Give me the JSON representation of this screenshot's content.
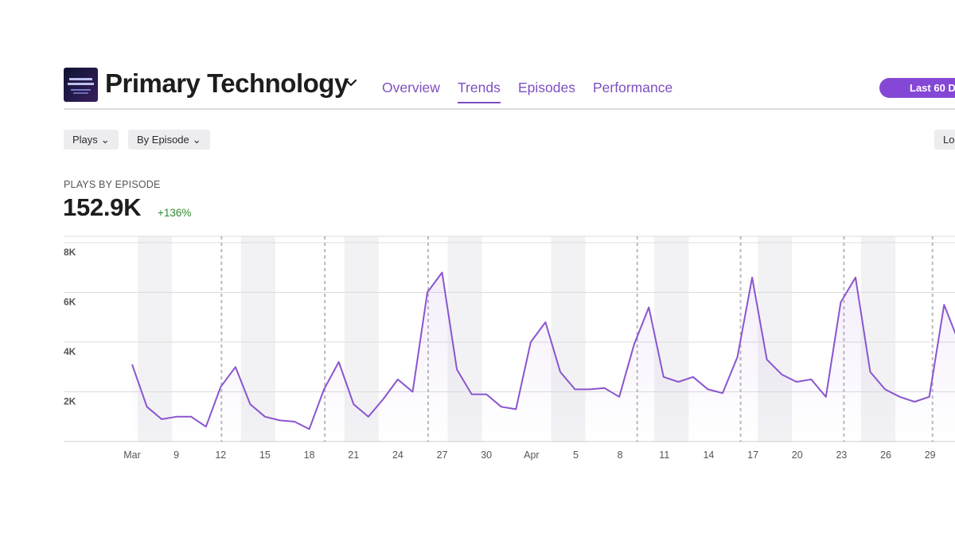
{
  "header": {
    "podcast_title": "Primary Technology",
    "tabs": [
      {
        "label": "Overview"
      },
      {
        "label": "Trends"
      },
      {
        "label": "Episodes"
      },
      {
        "label": "Performance"
      }
    ],
    "range_button": "Last 60 D"
  },
  "filters": {
    "metric": "Plays",
    "grouping": "By Episode",
    "right_button": "Lo"
  },
  "metric": {
    "label": "PLAYS BY EPISODE",
    "value": "152.9K",
    "change": "+136%"
  },
  "colors": {
    "accent": "#7e4fc2",
    "line": "#8a55cf",
    "positive": "#2e8b2e"
  },
  "chart_data": {
    "type": "line",
    "x_tick_labels": [
      "Mar",
      "9",
      "12",
      "15",
      "18",
      "21",
      "24",
      "27",
      "30",
      "Apr",
      "5",
      "8",
      "11",
      "14",
      "17",
      "20",
      "23",
      "26",
      "29"
    ],
    "y_tick_labels": [
      "8K",
      "6K",
      "4K",
      "2K"
    ],
    "ylim": [
      0,
      8000
    ],
    "series": [
      {
        "values": [
          3100,
          1400,
          900,
          1000,
          1000,
          600,
          2200,
          3000,
          1500,
          1000,
          850,
          800,
          500,
          2100,
          3200,
          1500,
          1000,
          1700,
          2500,
          2000,
          6000,
          6800,
          2900,
          1900,
          1900,
          1400,
          1300,
          4000,
          4800,
          2800,
          2100,
          2100,
          2150,
          1800,
          3900,
          5400,
          2600,
          2400,
          2600,
          2100,
          1950,
          3400,
          6600,
          3300,
          2700,
          2400,
          2500,
          1800,
          5600,
          6600,
          2800,
          2100,
          1800,
          1600,
          1800,
          5500,
          4000
        ]
      }
    ],
    "release_markers": [
      "12",
      "21",
      "27",
      "Apr 8",
      "Apr 17",
      "Apr 23",
      "Apr 29"
    ],
    "weekend_bands": true,
    "grid": true
  }
}
